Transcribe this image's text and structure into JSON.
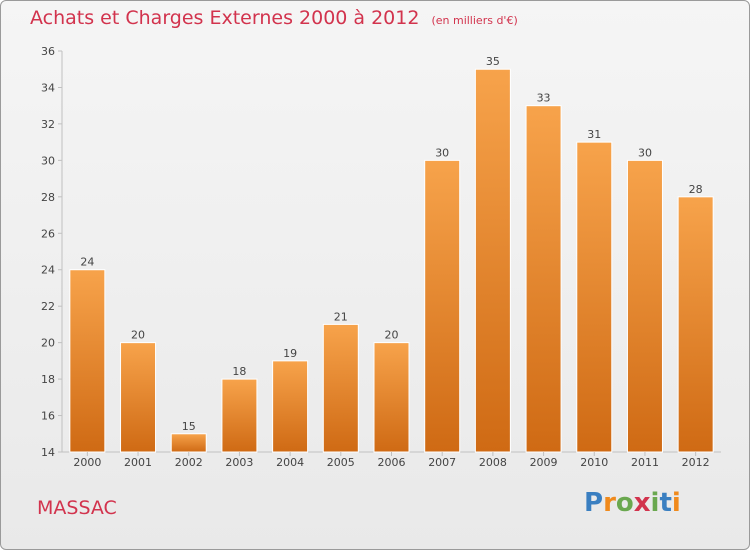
{
  "header": {
    "title": "Achats et Charges Externes 2000 à 2012",
    "subtitle": "(en milliers d'€)"
  },
  "footer": {
    "commune": "MASSAC",
    "logo_text": "Proxiti",
    "logo_colors": [
      "#3a7fc1",
      "#f08a1c",
      "#6aa84f",
      "#d2334d",
      "#6aa84f",
      "#3a7fc1",
      "#f08a1c"
    ]
  },
  "chart_data": {
    "type": "bar",
    "categories": [
      "2000",
      "2001",
      "2002",
      "2003",
      "2004",
      "2005",
      "2006",
      "2007",
      "2008",
      "2009",
      "2010",
      "2011",
      "2012"
    ],
    "values": [
      24,
      20,
      15,
      18,
      19,
      21,
      20,
      30,
      35,
      33,
      31,
      30,
      28
    ],
    "ylim": [
      14,
      36
    ],
    "yticks": [
      14,
      16,
      18,
      20,
      22,
      24,
      26,
      28,
      30,
      32,
      34,
      36
    ],
    "grid": false,
    "bar_color_top": "#f7a34b",
    "bar_color_bottom": "#cf6a14",
    "axis_color": "#c0c0c0",
    "label_color": "#444444"
  }
}
